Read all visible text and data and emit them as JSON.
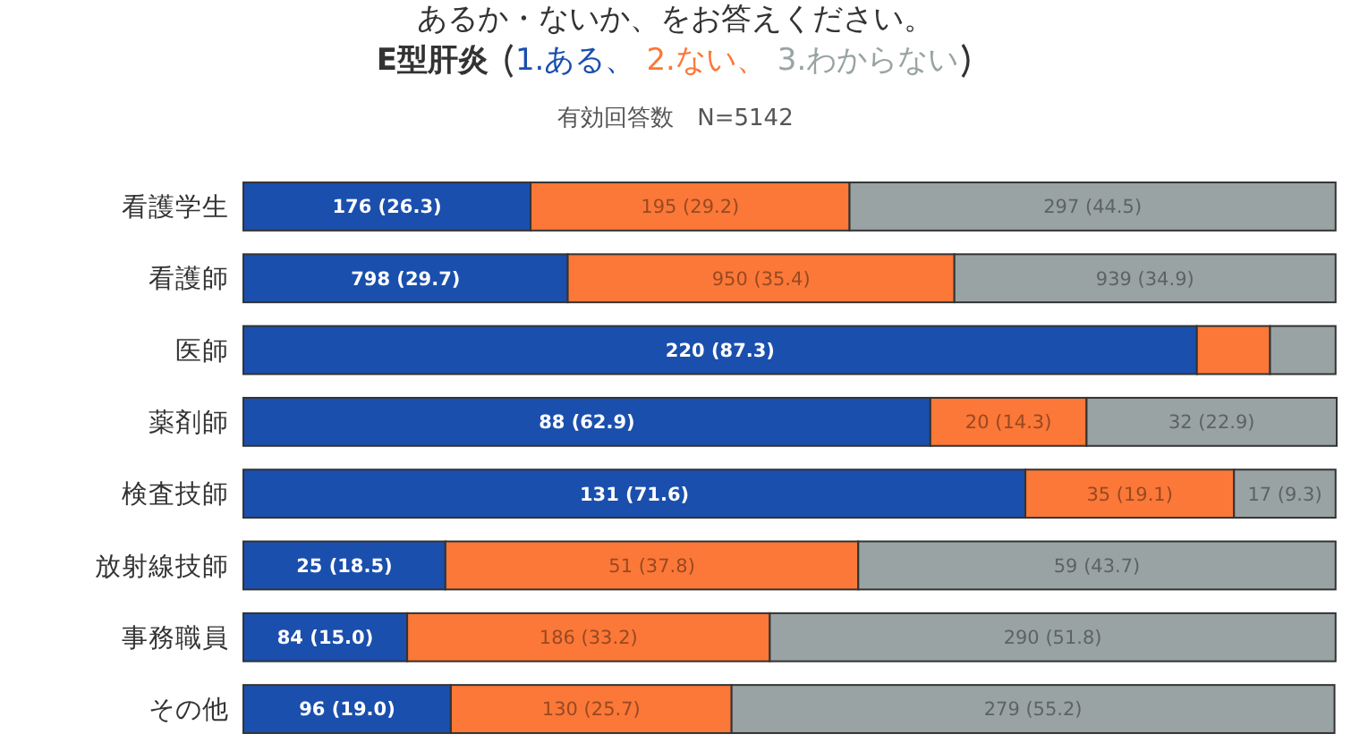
{
  "chart_data": {
    "type": "bar",
    "orientation": "horizontal",
    "stacked": true,
    "title": "あるか・ないか、をお答えください。",
    "subtitle": "E型肝炎",
    "annotations": [
      "有効回答数　N=5142"
    ],
    "legend": "top",
    "categories": [
      "看護学生",
      "看護師",
      "医師",
      "薬剤師",
      "検査技師",
      "放射線技師",
      "事務職員",
      "その他"
    ],
    "series": [
      {
        "name": "1.ある、",
        "color": "#1a4fad",
        "values": [
          26.3,
          29.7,
          87.3,
          62.9,
          71.6,
          18.5,
          15.0,
          19.0
        ],
        "value_labels": [
          "176 (26.3)",
          "798 (29.7)",
          "220 (87.3)",
          "88 (62.9)",
          "131 (71.6)",
          "25 (18.5)",
          "84 (15.0)",
          "96 (19.0)"
        ]
      },
      {
        "name": "2.ない、",
        "color": "#fb7838",
        "values": [
          29.2,
          35.4,
          6.7,
          14.3,
          19.1,
          37.8,
          33.2,
          25.7
        ],
        "value_labels": [
          "195 (29.2)",
          "950 (35.4)",
          null,
          "20 (14.3)",
          "35 (19.1)",
          "51 (37.8)",
          "186 (33.2)",
          "130 (25.7)"
        ]
      },
      {
        "name": "3.わからない",
        "color": "#99a3a3",
        "values": [
          44.5,
          34.9,
          6.0,
          22.9,
          9.3,
          43.7,
          51.8,
          55.2
        ],
        "value_labels": [
          "297 (44.5)",
          "939 (34.9)",
          null,
          "32 (22.9)",
          "17 (9.3)",
          "59 (43.7)",
          "290 (51.8)",
          "279 (55.2)"
        ]
      }
    ]
  }
}
